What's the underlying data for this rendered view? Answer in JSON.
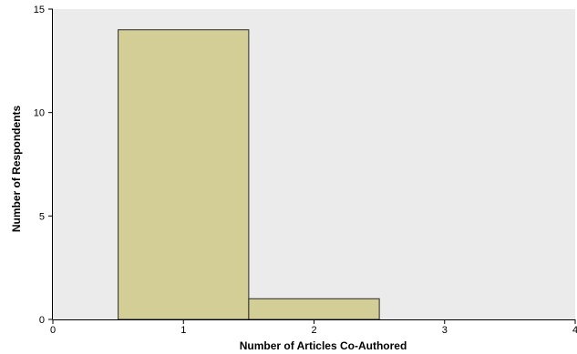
{
  "chart_data": {
    "type": "bar",
    "subtype": "histogram",
    "xlabel": "Number of Articles Co-Authored",
    "ylabel": "Number of Respondents",
    "xlim": [
      0,
      4
    ],
    "ylim": [
      0,
      15
    ],
    "x_ticks": [
      "0",
      "1",
      "2",
      "3",
      "4"
    ],
    "y_ticks": [
      "0",
      "5",
      "10",
      "15"
    ],
    "bins": [
      {
        "center": 1,
        "start": 0.5,
        "end": 1.5,
        "value": 14
      },
      {
        "center": 2,
        "start": 1.5,
        "end": 2.5,
        "value": 1
      }
    ],
    "grid": false,
    "legend": "none",
    "colors": {
      "plot_background": "#ebebeb",
      "bar_fill": "#d3cd96",
      "bar_stroke": "#2a2a2a"
    }
  }
}
